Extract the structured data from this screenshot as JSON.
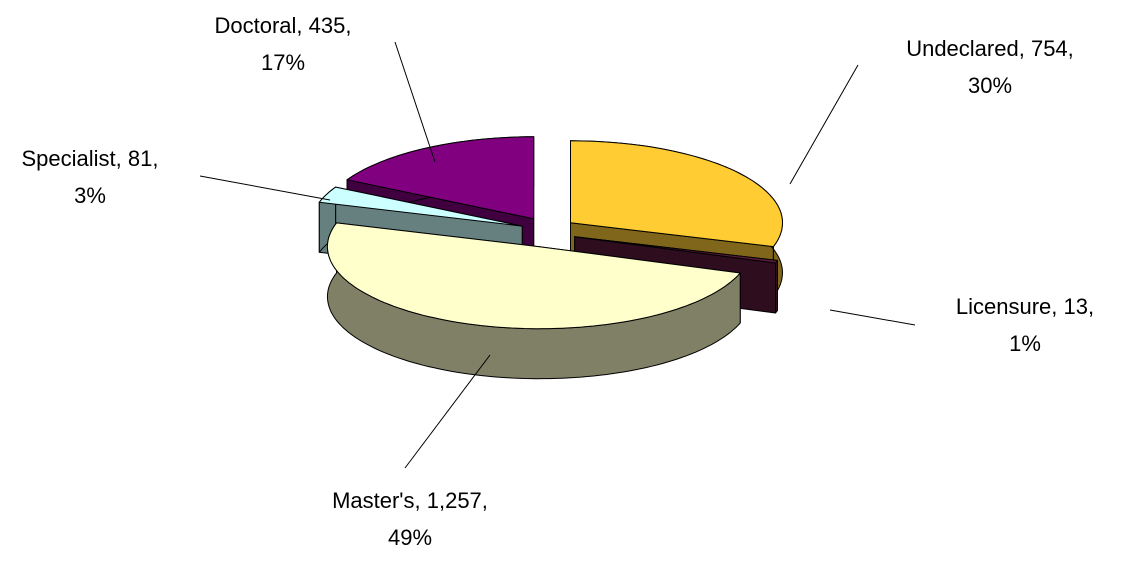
{
  "chart_data": {
    "type": "pie3d",
    "categories": [
      "Undeclared",
      "Licensure",
      "Master's",
      "Specialist",
      "Doctoral"
    ],
    "values": [
      754,
      13,
      1257,
      81,
      435
    ],
    "value_labels": [
      "754",
      "13",
      "1,257",
      "81",
      "435"
    ],
    "percents": [
      30,
      1,
      49,
      3,
      17
    ],
    "percent_labels": [
      "30%",
      "1%",
      "49%",
      "3%",
      "17%"
    ],
    "label_separator": ", ",
    "colors": [
      "#FFCC33",
      "#5C1A3C",
      "#FFFFCC",
      "#CCFFFF",
      "#800080"
    ]
  }
}
